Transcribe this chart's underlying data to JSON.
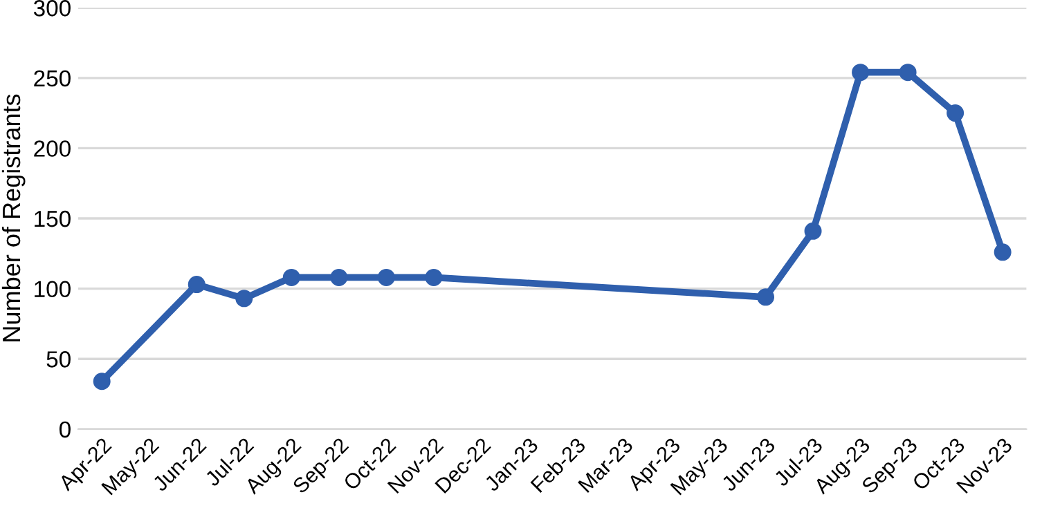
{
  "chart_data": {
    "type": "line",
    "ylabel": "Number of Registrants",
    "categories": [
      "Apr-22",
      "May-22",
      "Jun-22",
      "Jul-22",
      "Aug-22",
      "Sep-22",
      "Oct-22",
      "Nov-22",
      "Dec-22",
      "Jan-23",
      "Feb-23",
      "Mar-23",
      "Apr-23",
      "May-23",
      "Jun-23",
      "Jul-23",
      "Aug-23",
      "Sep-23",
      "Oct-23",
      "Nov-23"
    ],
    "series": [
      {
        "color": "#2f5fad",
        "values": [
          34,
          null,
          103,
          93,
          108,
          108,
          108,
          108,
          null,
          null,
          null,
          null,
          null,
          null,
          94,
          141,
          254,
          254,
          225,
          126
        ]
      }
    ],
    "ylim": [
      0,
      300
    ],
    "yticks": [
      0,
      50,
      100,
      150,
      200,
      250,
      300
    ],
    "grid": "y",
    "marker": "circle",
    "line_style": "solid",
    "legend": false
  }
}
